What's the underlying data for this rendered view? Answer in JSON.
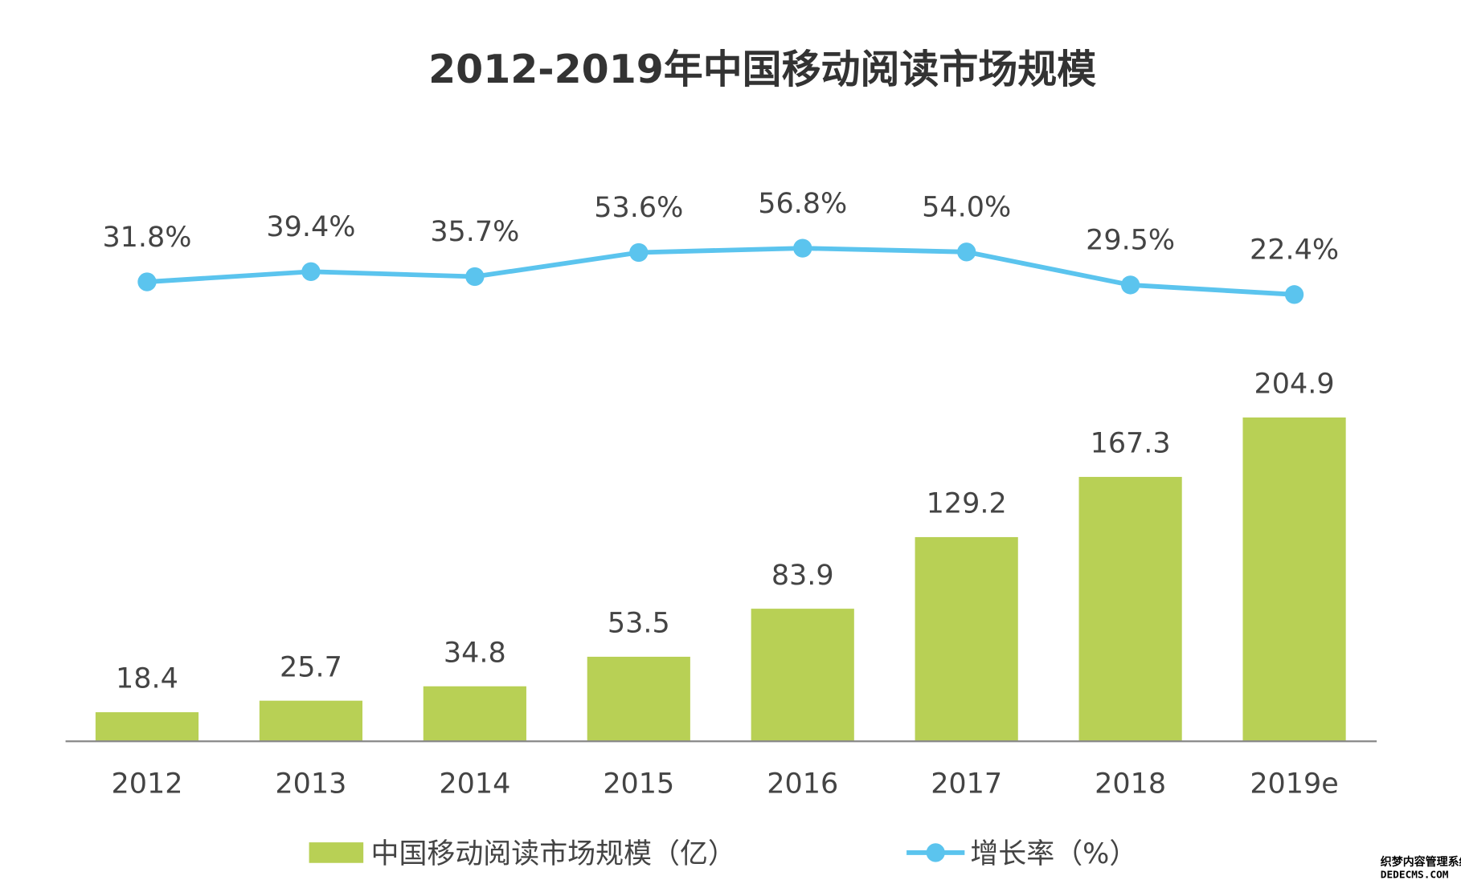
{
  "chart_data": {
    "type": "bar+line",
    "title": "2012-2019年中国移动阅读市场规模",
    "categories": [
      "2012",
      "2013",
      "2014",
      "2015",
      "2016",
      "2017",
      "2018",
      "2019e"
    ],
    "series": [
      {
        "name": "中国移动阅读市场规模（亿）",
        "type": "bar",
        "color": "#b8d055",
        "values": [
          18.4,
          25.7,
          34.8,
          53.5,
          83.9,
          129.2,
          167.3,
          204.9
        ],
        "labels": [
          "18.4",
          "25.7",
          "34.8",
          "53.5",
          "83.9",
          "129.2",
          "167.3",
          "204.9"
        ]
      },
      {
        "name": "增长率（%）",
        "type": "line",
        "color": "#5bc4ee",
        "values": [
          31.8,
          39.4,
          35.7,
          53.6,
          56.8,
          54.0,
          29.5,
          22.4
        ],
        "labels": [
          "31.8%",
          "39.4%",
          "35.7%",
          "53.6%",
          "56.8%",
          "54.0%",
          "29.5%",
          "22.4%"
        ]
      }
    ],
    "legend_placement": "bottom",
    "grid": false
  },
  "legend": {
    "bar": "中国移动阅读市场规模（亿）",
    "line": "增长率（%）"
  },
  "watermark": {
    "line1": "织梦内容管理系统",
    "line2": "DEDECMS.COM"
  }
}
